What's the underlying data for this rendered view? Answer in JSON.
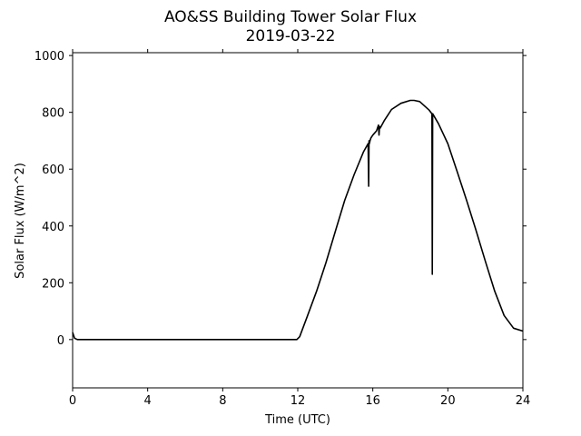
{
  "chart_data": {
    "type": "line",
    "title": "AO&SS Building Tower Solar Flux",
    "subtitle": "2019-03-22",
    "xlabel": "Time (UTC)",
    "ylabel": "Solar Flux (W/m^2)",
    "xlim": [
      0,
      24
    ],
    "ylim": [
      -170,
      1010
    ],
    "xticks": [
      0,
      4,
      8,
      12,
      16,
      20,
      24
    ],
    "yticks": [
      0,
      200,
      400,
      600,
      800,
      1000
    ],
    "grid": false,
    "line_color": "#000000",
    "series": [
      {
        "x": [
          0.0,
          0.1,
          0.25,
          1,
          4,
          8,
          11.95,
          12.1,
          12.5,
          13.0,
          13.5,
          14.0,
          14.5,
          15.0,
          15.5,
          15.75,
          15.78,
          15.8,
          15.82,
          15.85,
          15.9,
          16.0,
          16.2,
          16.3,
          16.33,
          16.36,
          16.4,
          16.6,
          17.0,
          17.5,
          18.0,
          18.2,
          18.5,
          19.0,
          19.15,
          19.17,
          19.19,
          19.22,
          19.5,
          20.0,
          20.5,
          21.0,
          21.5,
          22.0,
          22.5,
          23.0,
          23.5,
          24.0
        ],
        "y": [
          25,
          5,
          0,
          0,
          0,
          0,
          0,
          10,
          80,
          170,
          270,
          380,
          490,
          580,
          660,
          690,
          540,
          700,
          690,
          700,
          710,
          720,
          735,
          755,
          720,
          750,
          745,
          770,
          810,
          832,
          842,
          842,
          838,
          808,
          795,
          230,
          795,
          792,
          760,
          690,
          590,
          490,
          385,
          275,
          170,
          85,
          40,
          30
        ]
      }
    ]
  }
}
